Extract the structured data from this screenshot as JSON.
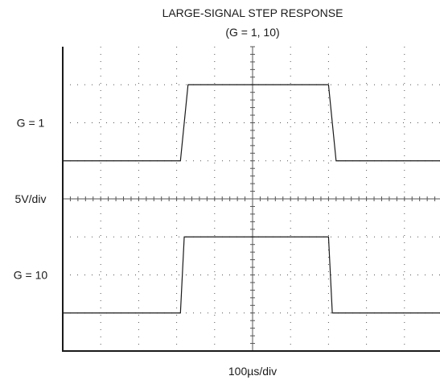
{
  "chart_data": {
    "type": "line",
    "title": "LARGE-SIGNAL STEP RESPONSE",
    "subtitle": "(G = 1, 10)",
    "xlabel": "100µs/div",
    "ylabel": "5V/div",
    "grid": true,
    "divisions": {
      "x": 10,
      "y": 8
    },
    "x_unit_per_div": 100,
    "series": [
      {
        "name": "G = 1",
        "center_div": 6,
        "x": [
          0,
          3.1,
          3.3,
          7.0,
          7.2,
          10
        ],
        "y": [
          -1,
          -1,
          1,
          1,
          -1,
          -1
        ]
      },
      {
        "name": "G = 10",
        "center_div": 2,
        "x": [
          0,
          3.1,
          3.2,
          7.0,
          7.1,
          10
        ],
        "y": [
          -1,
          -1,
          1,
          1,
          -1,
          -1
        ]
      }
    ]
  }
}
